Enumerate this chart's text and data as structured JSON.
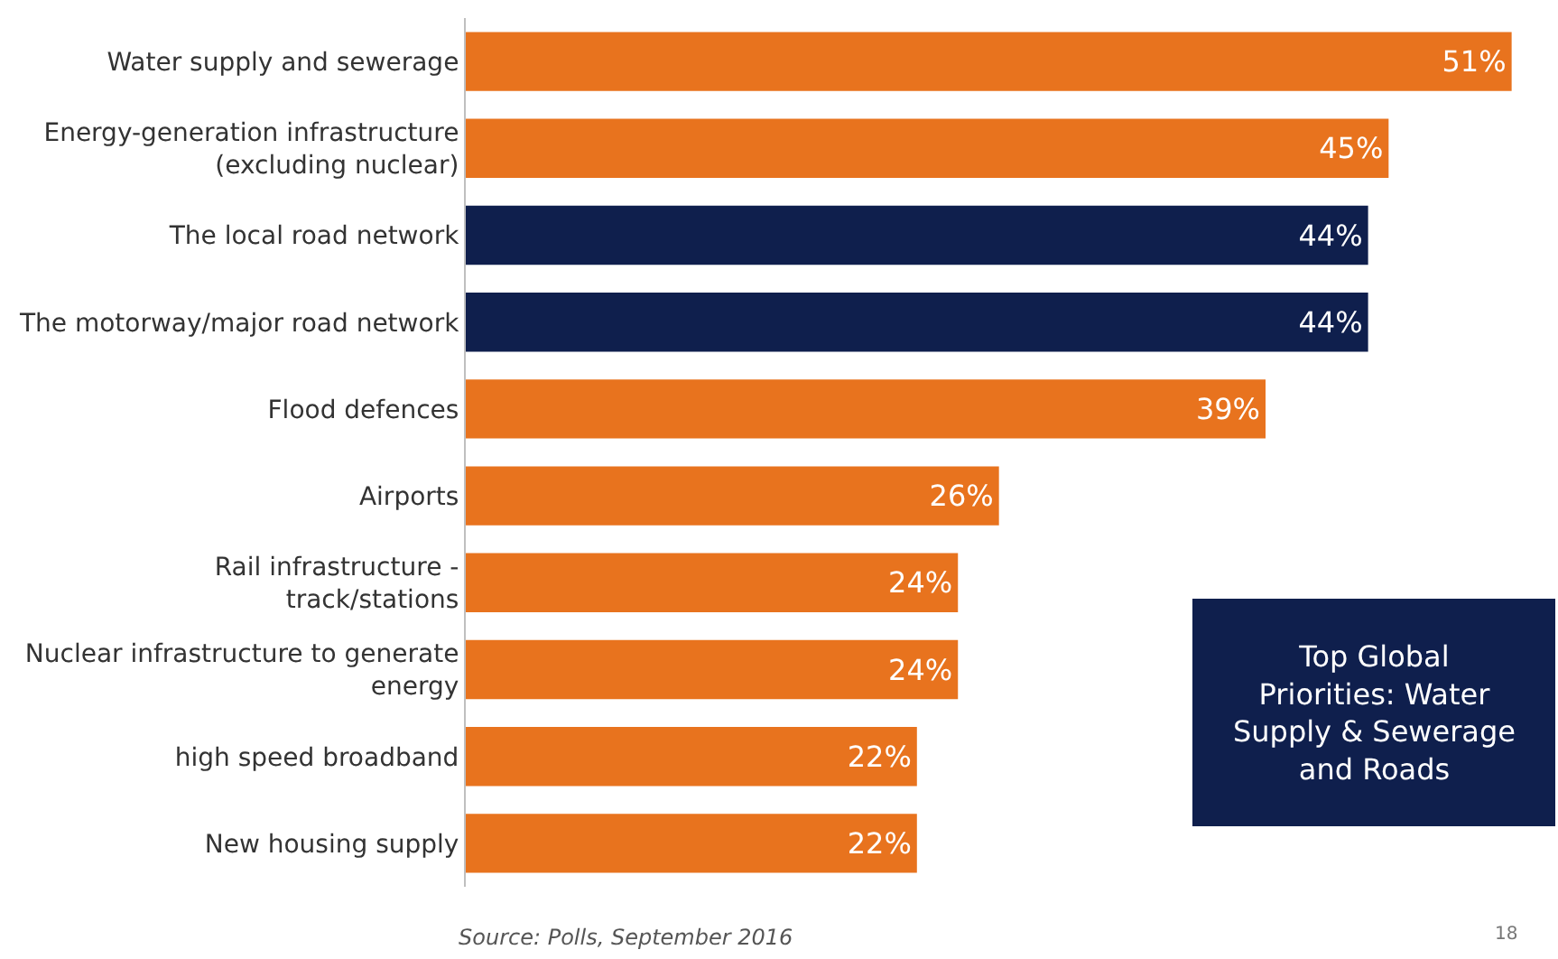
{
  "chart_data": {
    "type": "bar",
    "orientation": "horizontal",
    "value_labels": [
      "51%",
      "45%",
      "44%",
      "44%",
      "39%",
      "26%",
      "24%",
      "24%",
      "22%",
      "22%"
    ],
    "categories": [
      "Water supply and sewerage",
      "Energy-generation infrastructure (excluding nuclear)",
      "The local road network",
      "The motorway/major road network",
      "Flood defences",
      "Airports",
      "Rail infrastructure - track/stations",
      "Nuclear infrastructure to generate energy",
      "high speed broadband",
      "New housing supply"
    ],
    "values": [
      51,
      45,
      44,
      44,
      39,
      26,
      24,
      24,
      22,
      22
    ],
    "colors": [
      "#e8731e",
      "#e8731e",
      "#0f1f4d",
      "#0f1f4d",
      "#e8731e",
      "#e8731e",
      "#e8731e",
      "#e8731e",
      "#e8731e",
      "#e8731e"
    ],
    "annotations": [
      "Top Global Priorities: Water Supply & Sewerage and Roads",
      "Source: Polls, September 2016",
      "18"
    ]
  }
}
